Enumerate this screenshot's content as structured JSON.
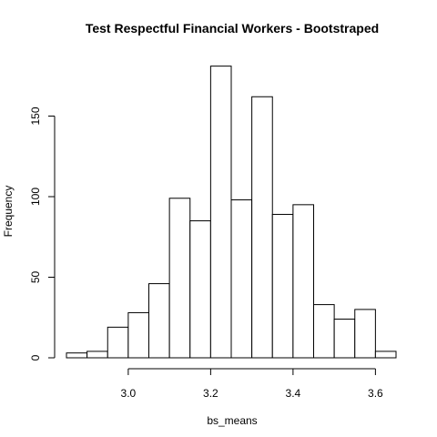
{
  "chart_data": {
    "type": "bar",
    "title": "Test Respectful Financial Workers - Bootstraped",
    "xlabel": "bs_means",
    "ylabel": "Frequency",
    "bin_edges": [
      2.85,
      2.9,
      2.95,
      3.0,
      3.05,
      3.1,
      3.15,
      3.2,
      3.25,
      3.3,
      3.35,
      3.4,
      3.45,
      3.5,
      3.55,
      3.6,
      3.65
    ],
    "values": [
      3,
      4,
      19,
      28,
      46,
      99,
      85,
      181,
      98,
      162,
      89,
      95,
      33,
      24,
      30,
      4
    ],
    "xlim": [
      2.85,
      3.65
    ],
    "ylim": [
      0,
      190
    ],
    "x_ticks": [
      3.0,
      3.2,
      3.4,
      3.6
    ],
    "x_tick_labels": [
      "3.0",
      "3.2",
      "3.4",
      "3.6"
    ],
    "y_ticks": [
      0,
      50,
      100,
      150
    ],
    "y_tick_labels": [
      "0",
      "50",
      "100",
      "150"
    ],
    "grid": false,
    "bar_fill": "#ffffff",
    "bar_stroke": "#000000"
  }
}
